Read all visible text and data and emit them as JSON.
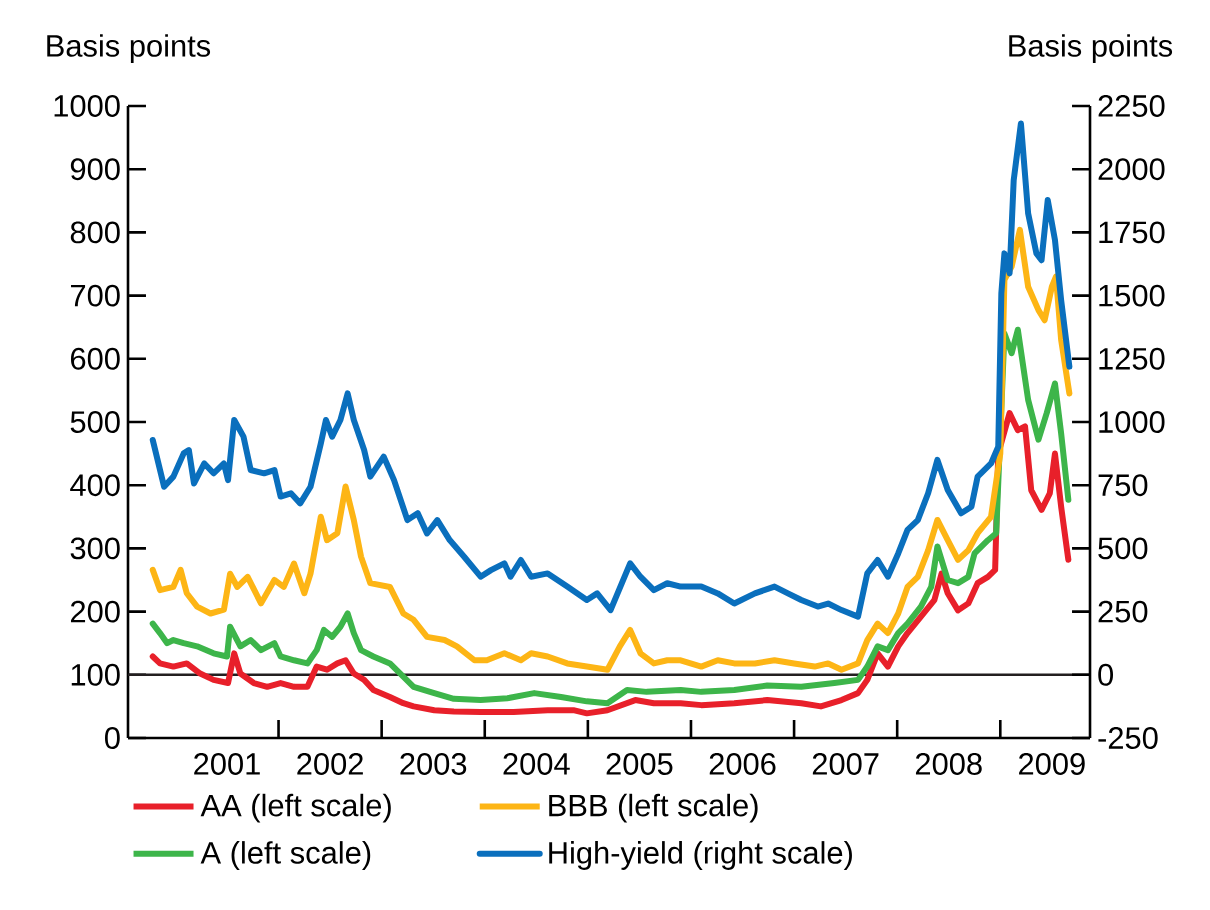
{
  "chart_data": {
    "type": "line",
    "ylabel": "Basis points",
    "y2label": "Basis points",
    "xlim": [
      2000.54,
      2009.87
    ],
    "xticks": [
      {
        "value": 2002,
        "label": null
      },
      {
        "value": 2003,
        "label": null
      },
      {
        "value": 2004,
        "label": null
      },
      {
        "value": 2005,
        "label": null
      },
      {
        "value": 2006,
        "label": null
      },
      {
        "value": 2007,
        "label": null
      },
      {
        "value": 2008,
        "label": null
      },
      {
        "value": 2009,
        "label": null
      },
      {
        "value": 2001.5,
        "label": "2001"
      },
      {
        "value": 2002.5,
        "label": "2002"
      },
      {
        "value": 2003.5,
        "label": "2003"
      },
      {
        "value": 2004.5,
        "label": "2004"
      },
      {
        "value": 2005.5,
        "label": "2005"
      },
      {
        "value": 2006.5,
        "label": "2006"
      },
      {
        "value": 2007.5,
        "label": "2007"
      },
      {
        "value": 2008.5,
        "label": "2008"
      },
      {
        "value": 2009.5,
        "label": "2009"
      }
    ],
    "ylim": [
      0,
      1000
    ],
    "yticks": [
      0,
      100,
      200,
      300,
      400,
      500,
      600,
      700,
      800,
      900,
      1000
    ],
    "y2lim": [
      -250,
      2250
    ],
    "y2ticks": [
      -250,
      0,
      250,
      500,
      750,
      1000,
      1250,
      1500,
      1750,
      2000,
      2250
    ],
    "ref_lines": [
      {
        "axis": "y",
        "value": 100,
        "color": "#231f20"
      }
    ],
    "legend": "bottom",
    "series": [
      {
        "name": "AA (left scale)",
        "color": "#e8202a",
        "x": [
          2000.78,
          2000.85,
          2000.98,
          2001.11,
          2001.24,
          2001.37,
          2001.51,
          2001.57,
          2001.63,
          2001.76,
          2001.89,
          2002.02,
          2002.15,
          2002.28,
          2002.37,
          2002.47,
          2002.57,
          2002.65,
          2002.73,
          2002.83,
          2002.92,
          2003.08,
          2003.21,
          2003.31,
          2003.51,
          2003.7,
          2003.96,
          2004.28,
          2004.61,
          2004.86,
          2004.99,
          2005.19,
          2005.46,
          2005.64,
          2005.9,
          2006.1,
          2006.42,
          2006.74,
          2007.07,
          2007.26,
          2007.46,
          2007.62,
          2007.71,
          2007.81,
          2007.91,
          2008.01,
          2008.1,
          2008.23,
          2008.36,
          2008.43,
          2008.49,
          2008.59,
          2008.69,
          2008.78,
          2008.88,
          2008.95,
          2008.98,
          2009.09,
          2009.17,
          2009.24,
          2009.3,
          2009.4,
          2009.48,
          2009.53,
          2009.59,
          2009.66
        ],
        "values": [
          129,
          118,
          113,
          118,
          102,
          92,
          87,
          134,
          102,
          87,
          81,
          87,
          81,
          81,
          113,
          108,
          118,
          123,
          102,
          92,
          76,
          65,
          55,
          50,
          44,
          42,
          41,
          41,
          44,
          44,
          39,
          44,
          60,
          55,
          55,
          52,
          55,
          60,
          55,
          50,
          60,
          71,
          92,
          134,
          113,
          145,
          166,
          192,
          218,
          260,
          229,
          202,
          213,
          245,
          255,
          266,
          450,
          514,
          487,
          493,
          392,
          361,
          387,
          450,
          366,
          282
        ]
      },
      {
        "name": "A (left scale)",
        "color": "#3db54a",
        "x": [
          2000.78,
          2000.85,
          2000.92,
          2000.98,
          2001.08,
          2001.21,
          2001.37,
          2001.5,
          2001.53,
          2001.63,
          2001.73,
          2001.83,
          2001.96,
          2002.02,
          2002.15,
          2002.28,
          2002.37,
          2002.44,
          2002.52,
          2002.6,
          2002.67,
          2002.73,
          2002.8,
          2002.92,
          2003.08,
          2003.21,
          2003.31,
          2003.51,
          2003.7,
          2003.96,
          2004.22,
          2004.48,
          2004.74,
          2004.99,
          2005.19,
          2005.38,
          2005.57,
          2005.9,
          2006.1,
          2006.42,
          2006.74,
          2007.07,
          2007.39,
          2007.62,
          2007.71,
          2007.81,
          2007.91,
          2008.01,
          2008.1,
          2008.23,
          2008.33,
          2008.39,
          2008.49,
          2008.59,
          2008.69,
          2008.75,
          2008.88,
          2008.96,
          2009.04,
          2009.11,
          2009.17,
          2009.27,
          2009.37,
          2009.45,
          2009.53,
          2009.59,
          2009.66
        ],
        "values": [
          181,
          166,
          150,
          155,
          150,
          145,
          134,
          129,
          176,
          145,
          155,
          139,
          150,
          129,
          123,
          118,
          139,
          171,
          160,
          176,
          197,
          166,
          139,
          129,
          118,
          97,
          81,
          71,
          62,
          60,
          63,
          71,
          65,
          58,
          55,
          76,
          73,
          76,
          73,
          76,
          83,
          81,
          87,
          92,
          113,
          145,
          139,
          166,
          181,
          208,
          239,
          303,
          250,
          245,
          255,
          292,
          313,
          324,
          640,
          609,
          646,
          535,
          472,
          514,
          561,
          482,
          377
        ]
      },
      {
        "name": "BBB (left scale)",
        "color": "#fdb515",
        "x": [
          2000.78,
          2000.85,
          2000.98,
          2001.05,
          2001.11,
          2001.21,
          2001.34,
          2001.47,
          2001.53,
          2001.6,
          2001.7,
          2001.83,
          2001.96,
          2002.05,
          2002.15,
          2002.25,
          2002.31,
          2002.41,
          2002.47,
          2002.57,
          2002.65,
          2002.73,
          2002.8,
          2002.89,
          2003.08,
          2003.21,
          2003.31,
          2003.44,
          2003.61,
          2003.73,
          2003.9,
          2004.02,
          2004.19,
          2004.35,
          2004.45,
          2004.61,
          2004.8,
          2004.99,
          2005.19,
          2005.31,
          2005.41,
          2005.51,
          2005.64,
          2005.77,
          2005.9,
          2006.1,
          2006.26,
          2006.42,
          2006.62,
          2006.81,
          2007.0,
          2007.2,
          2007.33,
          2007.46,
          2007.62,
          2007.71,
          2007.81,
          2007.91,
          2008.01,
          2008.1,
          2008.2,
          2008.3,
          2008.39,
          2008.49,
          2008.59,
          2008.69,
          2008.78,
          2008.91,
          2009.0,
          2009.04,
          2009.11,
          2009.19,
          2009.27,
          2009.37,
          2009.43,
          2009.5,
          2009.54,
          2009.59,
          2009.67
        ],
        "values": [
          266,
          234,
          239,
          266,
          229,
          208,
          197,
          203,
          260,
          239,
          255,
          213,
          250,
          239,
          276,
          229,
          260,
          350,
          313,
          324,
          398,
          345,
          287,
          245,
          239,
          197,
          187,
          160,
          155,
          145,
          123,
          123,
          134,
          123,
          134,
          129,
          118,
          113,
          108,
          145,
          171,
          134,
          118,
          123,
          123,
          113,
          123,
          118,
          118,
          123,
          118,
          113,
          118,
          108,
          118,
          155,
          181,
          166,
          197,
          239,
          255,
          297,
          345,
          313,
          282,
          297,
          324,
          350,
          450,
          725,
          746,
          804,
          714,
          677,
          661,
          714,
          730,
          630,
          545
        ]
      },
      {
        "name": "High-yield (right scale)",
        "color": "#0a6fbd",
        "axis": "y2",
        "x": [
          2000.78,
          2000.89,
          2000.98,
          2001.08,
          2001.13,
          2001.18,
          2001.28,
          2001.37,
          2001.47,
          2001.51,
          2001.57,
          2001.66,
          2001.73,
          2001.86,
          2001.96,
          2002.02,
          2002.12,
          2002.21,
          2002.31,
          2002.41,
          2002.46,
          2002.52,
          2002.6,
          2002.67,
          2002.73,
          2002.83,
          2002.89,
          2003.02,
          2003.12,
          2003.25,
          2003.35,
          2003.44,
          2003.54,
          2003.66,
          2003.8,
          2003.96,
          2004.06,
          2004.19,
          2004.25,
          2004.35,
          2004.45,
          2004.61,
          2004.8,
          2004.99,
          2005.09,
          2005.22,
          2005.41,
          2005.51,
          2005.64,
          2005.77,
          2005.9,
          2006.1,
          2006.26,
          2006.42,
          2006.62,
          2006.81,
          2006.94,
          2007.07,
          2007.23,
          2007.33,
          2007.46,
          2007.62,
          2007.71,
          2007.81,
          2007.91,
          2008.01,
          2008.1,
          2008.2,
          2008.3,
          2008.39,
          2008.49,
          2008.62,
          2008.72,
          2008.78,
          2008.91,
          2008.98,
          2009.01,
          2009.04,
          2009.09,
          2009.13,
          2009.2,
          2009.27,
          2009.35,
          2009.4,
          2009.46,
          2009.53,
          2009.59,
          2009.67
        ],
        "values": [
          929,
          744,
          784,
          876,
          889,
          757,
          836,
          797,
          836,
          770,
          1008,
          942,
          810,
          797,
          810,
          705,
          718,
          678,
          744,
          915,
          1008,
          942,
          1008,
          1113,
          1008,
          889,
          784,
          863,
          770,
          612,
          639,
          559,
          612,
          533,
          467,
          388,
          414,
          441,
          388,
          454,
          388,
          401,
          349,
          296,
          322,
          256,
          441,
          388,
          335,
          362,
          349,
          349,
          322,
          282,
          322,
          349,
          322,
          296,
          270,
          282,
          256,
          230,
          401,
          454,
          388,
          480,
          573,
          612,
          718,
          850,
          731,
          639,
          665,
          784,
          836,
          902,
          1508,
          1667,
          1588,
          1957,
          2181,
          1825,
          1667,
          1640,
          1878,
          1720,
          1482,
          1219
        ]
      }
    ]
  }
}
